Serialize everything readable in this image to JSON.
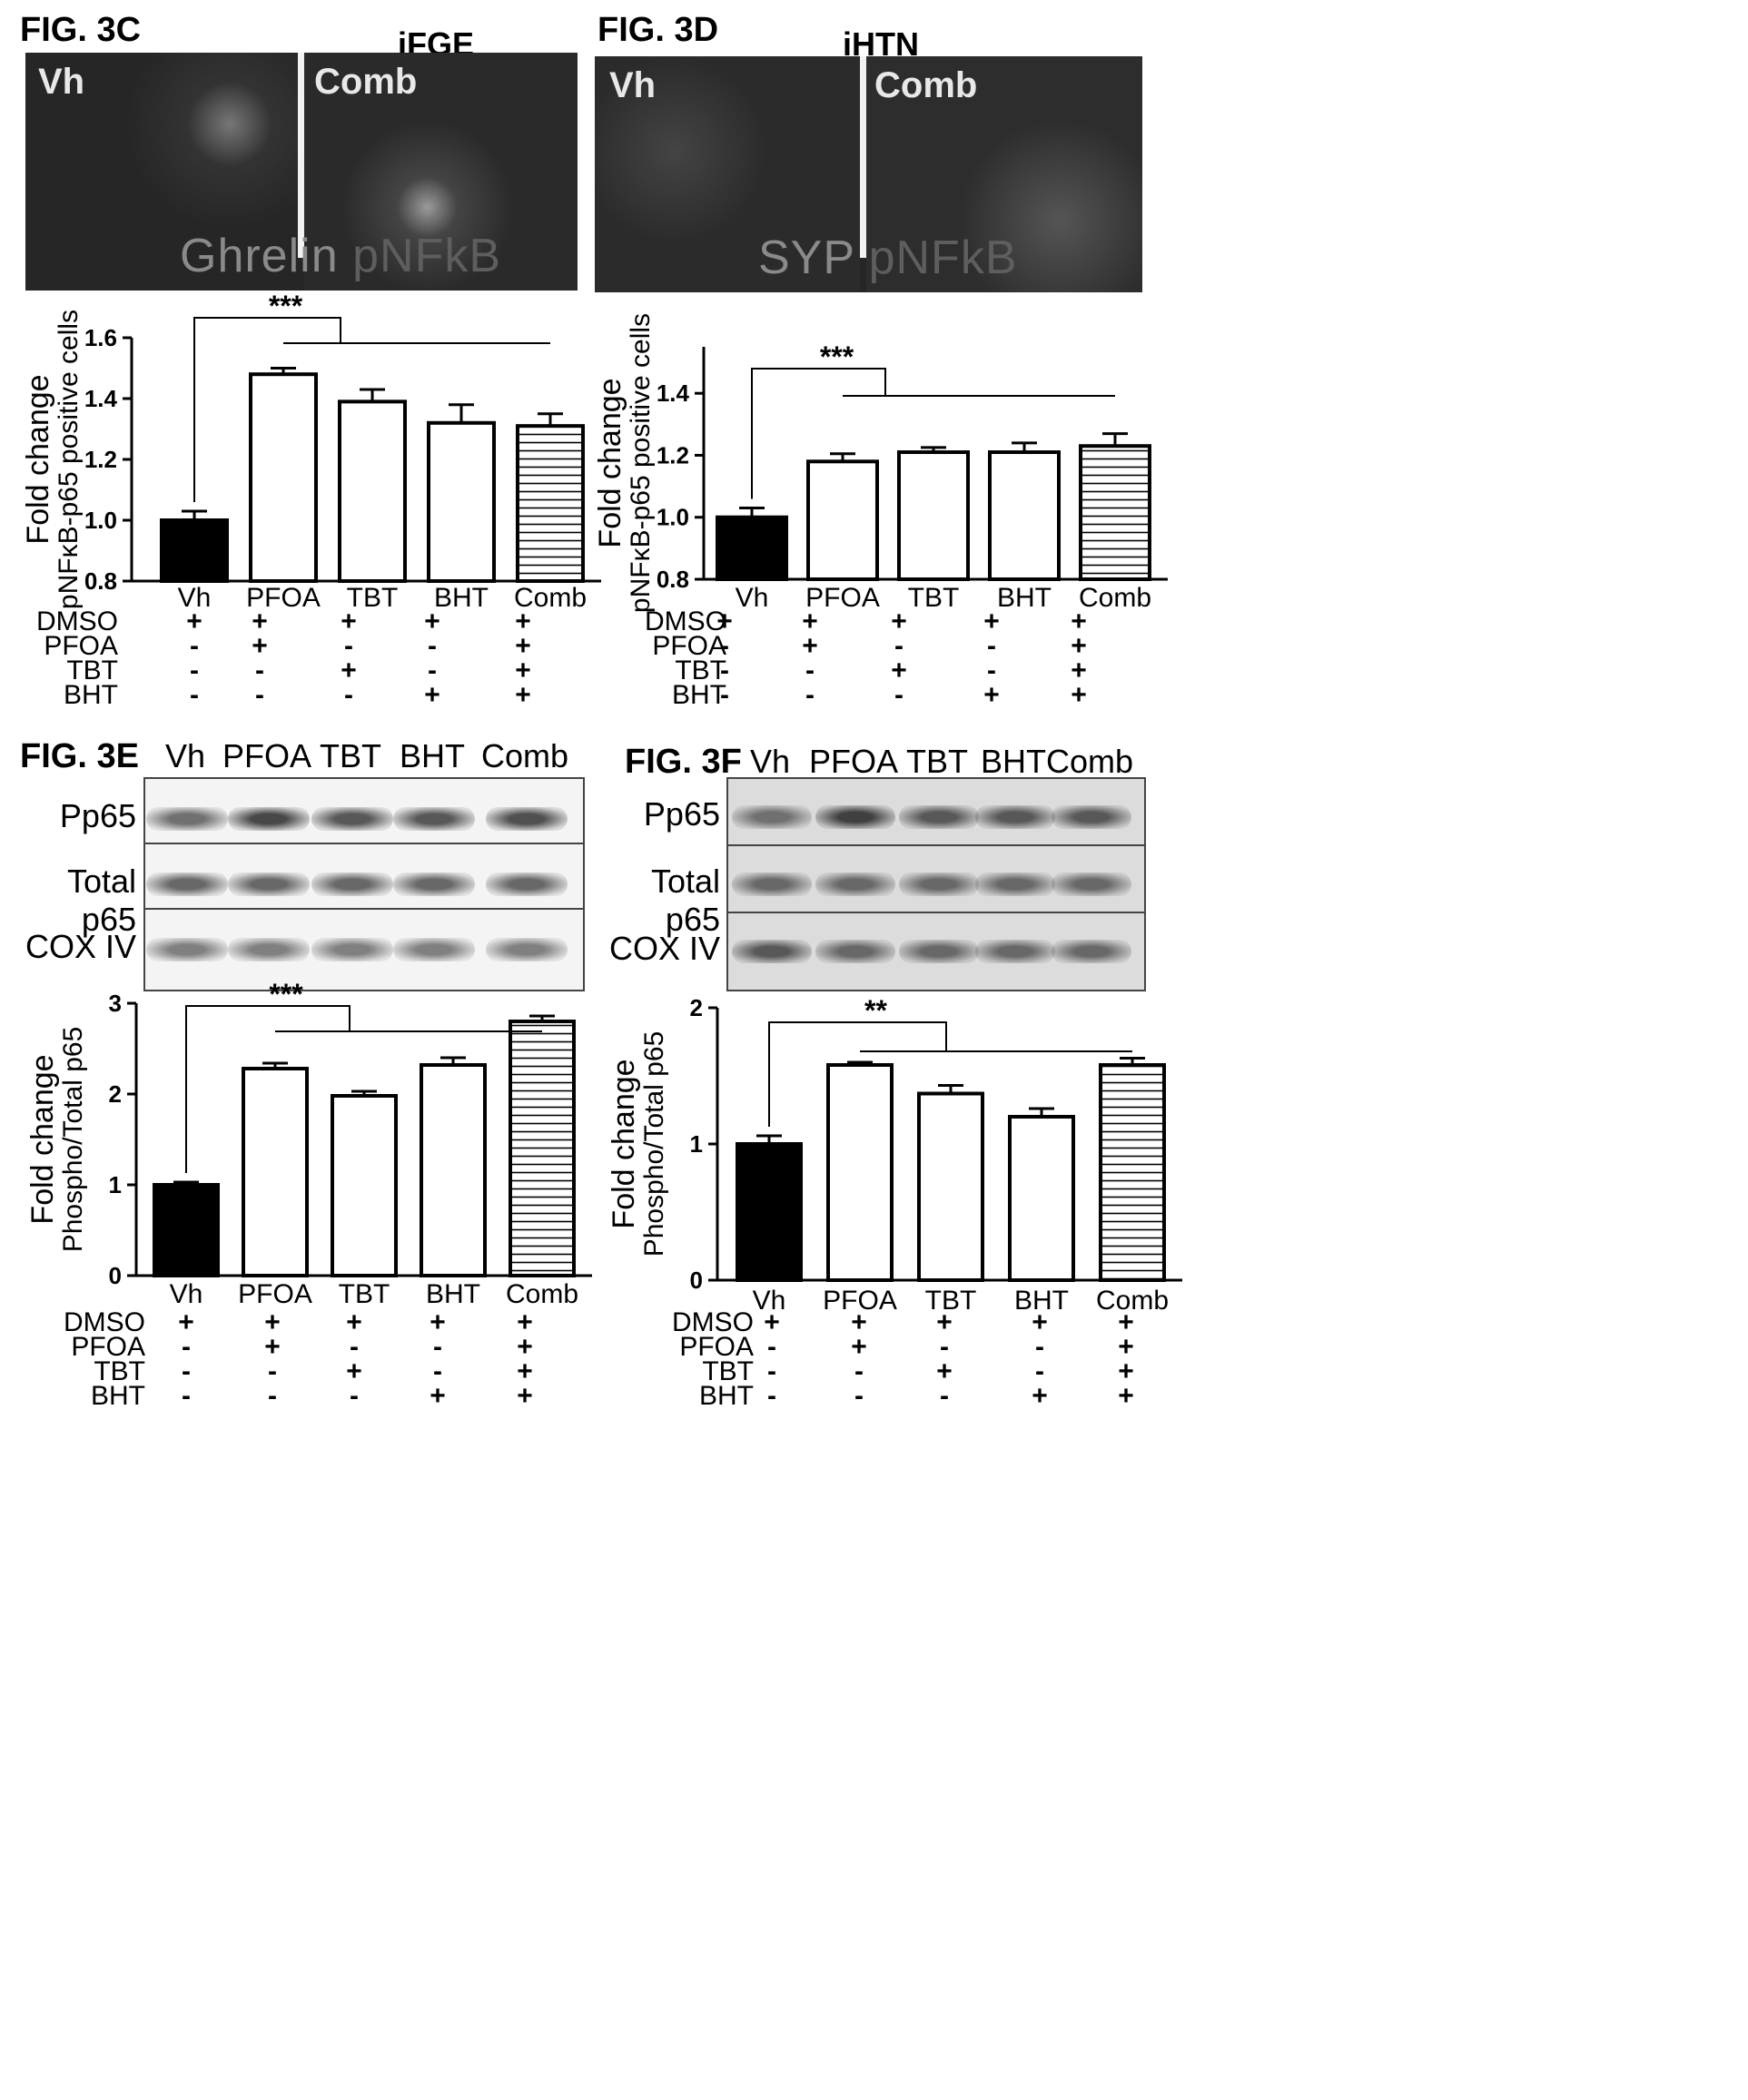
{
  "treatment_rows": [
    "DMSO",
    "PFOA",
    "TBT",
    "BHT"
  ],
  "treatment_matrix": [
    [
      "+",
      "+",
      "+",
      "+",
      "+"
    ],
    [
      "-",
      "+",
      "-",
      "-",
      "+"
    ],
    [
      "-",
      "-",
      "+",
      "-",
      "+"
    ],
    [
      "-",
      "-",
      "-",
      "+",
      "+"
    ]
  ],
  "panel_c": {
    "label": "FIG. 3C",
    "title": "iFGE",
    "left_tag": "Vh",
    "right_tag": "Comb",
    "stain_text_a": "Ghrelin",
    "stain_text_b": "pNFkB"
  },
  "panel_d": {
    "label": "FIG. 3D",
    "title": "iHTN",
    "left_tag": "Vh",
    "right_tag": "Comb",
    "stain_text_a": "SYP",
    "stain_text_b": "pNFkB"
  },
  "panel_e": {
    "label": "FIG. 3E",
    "lanes": [
      "Vh",
      "PFOA",
      "TBT",
      "BHT",
      "Comb"
    ],
    "rows": [
      {
        "name": "Pp65",
        "intensity": [
          0.55,
          0.8,
          0.7,
          0.7,
          0.75
        ]
      },
      {
        "name": "Total p65",
        "intensity": [
          0.6,
          0.6,
          0.6,
          0.6,
          0.6
        ]
      },
      {
        "name": "COX IV",
        "intensity": [
          0.45,
          0.45,
          0.45,
          0.45,
          0.45
        ]
      }
    ]
  },
  "panel_f": {
    "label": "FIG. 3F",
    "lanes": [
      "Vh",
      "PFOA",
      "TBT",
      "BHT",
      "Comb"
    ],
    "rows": [
      {
        "name": "Pp65",
        "intensity": [
          0.55,
          0.85,
          0.7,
          0.7,
          0.7
        ]
      },
      {
        "name": "Total p65",
        "intensity": [
          0.6,
          0.6,
          0.6,
          0.6,
          0.6
        ]
      },
      {
        "name": "COX IV",
        "intensity": [
          0.7,
          0.6,
          0.6,
          0.6,
          0.6
        ]
      }
    ]
  },
  "chart_data": [
    {
      "id": "chart_c",
      "type": "bar",
      "categories": [
        "Vh",
        "PFOA",
        "TBT",
        "BHT",
        "Comb"
      ],
      "values": [
        1.0,
        1.48,
        1.39,
        1.32,
        1.31
      ],
      "errors": [
        0.03,
        0.02,
        0.04,
        0.06,
        0.04
      ],
      "fills": [
        "solid",
        "open",
        "open",
        "open",
        "hatched"
      ],
      "ylabel_line1": "Fold change",
      "ylabel_line2": "pNFκB-p65 positive cells",
      "ylim": [
        0.8,
        1.6
      ],
      "yticks": [
        "0.8",
        "1.0",
        "1.2",
        "1.4",
        "1.6"
      ],
      "ytick_values": [
        0.8,
        1.0,
        1.2,
        1.4,
        1.6
      ],
      "significance": "***"
    },
    {
      "id": "chart_d",
      "type": "bar",
      "categories": [
        "Vh",
        "PFOA",
        "TBT",
        "BHT",
        "Comb"
      ],
      "values": [
        1.0,
        1.18,
        1.21,
        1.21,
        1.23
      ],
      "errors": [
        0.03,
        0.025,
        0.015,
        0.03,
        0.04
      ],
      "fills": [
        "solid",
        "open",
        "open",
        "open",
        "hatched"
      ],
      "ylabel_line1": "Fold change",
      "ylabel_line2": "pNFκB-p65 positive cells",
      "ylim": [
        0.8,
        1.55
      ],
      "yticks": [
        "0.8",
        "1.0",
        "1.2",
        "1.4"
      ],
      "ytick_values": [
        0.8,
        1.0,
        1.2,
        1.4
      ],
      "significance": "***"
    },
    {
      "id": "chart_e",
      "type": "bar",
      "categories": [
        "Vh",
        "PFOA",
        "TBT",
        "BHT",
        "Comb"
      ],
      "values": [
        1.0,
        2.28,
        1.98,
        2.32,
        2.8
      ],
      "errors": [
        0.03,
        0.06,
        0.05,
        0.08,
        0.06
      ],
      "fills": [
        "solid",
        "open",
        "open",
        "open",
        "hatched"
      ],
      "ylabel_line1": "Fold change",
      "ylabel_line2": "Phospho/Total p65",
      "ylim": [
        0,
        3
      ],
      "yticks": [
        "0",
        "1",
        "2",
        "3"
      ],
      "ytick_values": [
        0,
        1,
        2,
        3
      ],
      "significance": "***"
    },
    {
      "id": "chart_f",
      "type": "bar",
      "categories": [
        "Vh",
        "PFOA",
        "TBT",
        "BHT",
        "Comb"
      ],
      "values": [
        1.0,
        1.58,
        1.37,
        1.2,
        1.58
      ],
      "errors": [
        0.06,
        0.02,
        0.06,
        0.06,
        0.05
      ],
      "fills": [
        "solid",
        "open",
        "open",
        "open",
        "hatched"
      ],
      "ylabel_line1": "Fold change",
      "ylabel_line2": "Phospho/Total p65",
      "ylim": [
        0,
        2
      ],
      "yticks": [
        "0",
        "1",
        "2"
      ],
      "ytick_values": [
        0,
        1,
        2
      ],
      "significance": "**"
    }
  ]
}
